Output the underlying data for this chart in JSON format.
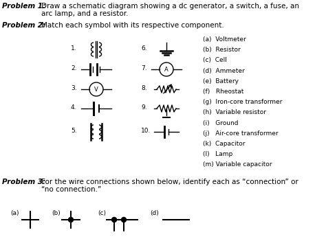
{
  "bg_color": "#ffffff",
  "p1_label": "Problem 1:",
  "p1_line1": "Draw a schematic diagram showing a dc generator, a switch, a fuse, an",
  "p1_line2": "arc lamp, and a resistor.",
  "p2_label": "Problem 2:",
  "p2_text": "Match each symbol with its respective component.",
  "p3_label": "Problem 3:",
  "p3_line1": "For the wire connections shown below, identify each as “connection” or",
  "p3_line2": "“no connection.”",
  "options": [
    "(a)  Voltmeter",
    "(b)  Resistor",
    "(c)  Cell",
    "(d)  Ammeter",
    "(e)  Battery",
    "(f)   Rheostat",
    "(g)  Iron-core transformer",
    "(h)  Variable resistor",
    "(i)   Ground",
    "(j)   Air-core transformer",
    "(k)  Capacitor",
    "(l)   Lamp",
    "(m) Variable capacitor"
  ],
  "num_labels_col1": [
    "1.",
    "2.",
    "3.",
    "4.",
    "5."
  ],
  "num_labels_col2": [
    "6.",
    "7.",
    "8.",
    "9.",
    "10."
  ],
  "p3_labels": [
    "(a)",
    "(b)",
    "(c)",
    "(d)"
  ]
}
